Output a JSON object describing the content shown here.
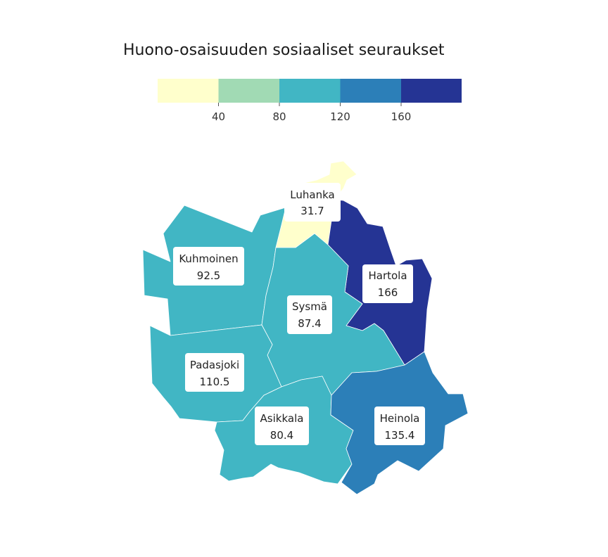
{
  "title": "Huono-osaisuuden sosiaaliset seuraukset",
  "legend": {
    "bins": [
      {
        "min": 0,
        "max": 40,
        "color": "#ffffcc"
      },
      {
        "min": 40,
        "max": 80,
        "color": "#a1dab4"
      },
      {
        "min": 80,
        "max": 120,
        "color": "#41b6c4"
      },
      {
        "min": 120,
        "max": 160,
        "color": "#2c7fb8"
      },
      {
        "min": 160,
        "max": 200,
        "color": "#253494"
      }
    ],
    "ticks": [
      "40",
      "80",
      "120",
      "160"
    ]
  },
  "regions": [
    {
      "name": "Luhanka",
      "value": "31.7",
      "color": "#ffffcc"
    },
    {
      "name": "Kuhmoinen",
      "value": "92.5",
      "color": "#41b6c4"
    },
    {
      "name": "Hartola",
      "value": "166",
      "color": "#253494"
    },
    {
      "name": "Sysmä",
      "value": "87.4",
      "color": "#41b6c4"
    },
    {
      "name": "Padasjoki",
      "value": "110.5",
      "color": "#41b6c4"
    },
    {
      "name": "Asikkala",
      "value": "80.4",
      "color": "#41b6c4"
    },
    {
      "name": "Heinola",
      "value": "135.4",
      "color": "#2c7fb8"
    }
  ]
}
